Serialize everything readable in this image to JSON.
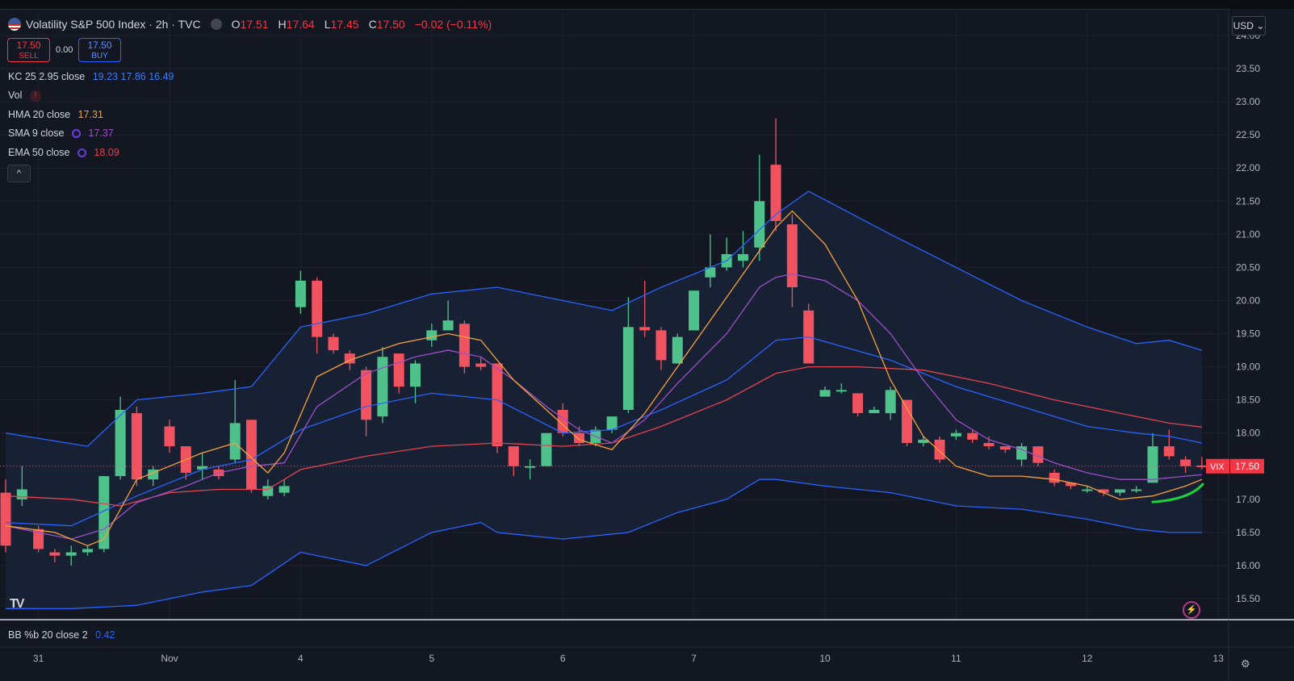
{
  "header": {
    "title": "Volatility S&P 500 Index · 2h · TVC",
    "ohlc": [
      {
        "k": "O",
        "v": "17.51"
      },
      {
        "k": "H",
        "v": "17.64"
      },
      {
        "k": "L",
        "v": "17.45"
      },
      {
        "k": "C",
        "v": "17.50"
      }
    ],
    "change": "−0.02 (−0.11%)"
  },
  "trade": {
    "sell_price": "17.50",
    "sell_label": "SELL",
    "spread": "0.00",
    "buy_price": "17.50",
    "buy_label": "BUY"
  },
  "indicators": [
    {
      "label": "KC 25 2.95 close",
      "values": "19.23  17.86  16.49",
      "color": "#2962ff"
    },
    {
      "label": "Vol",
      "values": "",
      "color": "#f23645"
    },
    {
      "label": "HMA 20 close",
      "values": "17.31",
      "color": "#f7a13a"
    },
    {
      "label": "SMA 9 close",
      "values": "17.37",
      "color": "#9c4fc8"
    },
    {
      "label": "EMA 50 close",
      "values": "18.09",
      "color": "#e2434f"
    }
  ],
  "collapse_label": "^",
  "currency_button": "USD ⌄",
  "price_label": {
    "symbol": "VIX",
    "value": "17.50"
  },
  "lower_pane": {
    "label": "BB %b 20 close 2",
    "value": "0.42"
  },
  "colors": {
    "bg": "#131722",
    "up": "#4fc28c",
    "down": "#f0525f",
    "kc": "#2962ff",
    "hma": "#f7a13a",
    "sma": "#9c4fc8",
    "ema": "#e2434f"
  },
  "chart_data": {
    "type": "candlestick",
    "y_axis": {
      "min": 15.1,
      "max": 24.2,
      "ticks": [
        "15.50",
        "16.00",
        "16.50",
        "17.00",
        "17.50",
        "18.00",
        "18.50",
        "19.00",
        "19.50",
        "20.00",
        "20.50",
        "21.00",
        "21.50",
        "22.00",
        "22.50",
        "23.00",
        "23.50",
        "24.00"
      ]
    },
    "x_ticks": [
      {
        "label": "31",
        "index": 2
      },
      {
        "label": "Nov",
        "index": 10
      },
      {
        "label": "4",
        "index": 18
      },
      {
        "label": "5",
        "index": 26
      },
      {
        "label": "6",
        "index": 34
      },
      {
        "label": "7",
        "index": 42
      },
      {
        "label": "10",
        "index": 50
      },
      {
        "label": "11",
        "index": 58
      },
      {
        "label": "12",
        "index": 66
      },
      {
        "label": "13",
        "index": 74
      }
    ],
    "candles": [
      [
        17.1,
        16.3,
        17.3,
        16.2
      ],
      [
        17.0,
        17.15,
        17.5,
        16.9
      ],
      [
        16.55,
        16.25,
        16.6,
        16.2
      ],
      [
        16.2,
        16.15,
        16.25,
        16.05
      ],
      [
        16.15,
        16.2,
        16.3,
        16.0
      ],
      [
        16.2,
        16.25,
        16.3,
        16.15
      ],
      [
        16.25,
        17.35,
        17.35,
        16.2
      ],
      [
        17.35,
        18.35,
        18.55,
        17.3
      ],
      [
        18.3,
        17.3,
        18.4,
        17.2
      ],
      [
        17.3,
        17.45,
        17.5,
        17.2
      ],
      [
        18.1,
        17.8,
        18.2,
        17.7
      ],
      [
        17.8,
        17.4,
        17.8,
        17.3
      ],
      [
        17.45,
        17.5,
        17.7,
        17.3
      ],
      [
        17.45,
        17.35,
        17.5,
        17.3
      ],
      [
        17.6,
        18.15,
        18.8,
        17.55
      ],
      [
        18.2,
        17.15,
        18.2,
        17.1
      ],
      [
        17.05,
        17.2,
        17.3,
        17.0
      ],
      [
        17.1,
        17.2,
        17.3,
        17.05
      ],
      [
        19.9,
        20.3,
        20.45,
        19.8
      ],
      [
        20.3,
        19.45,
        20.35,
        19.2
      ],
      [
        19.45,
        19.25,
        19.5,
        19.2
      ],
      [
        19.2,
        19.05,
        19.25,
        18.95
      ],
      [
        18.95,
        18.2,
        19.0,
        17.95
      ],
      [
        18.25,
        19.15,
        19.3,
        18.15
      ],
      [
        19.2,
        18.7,
        19.2,
        18.6
      ],
      [
        18.7,
        19.05,
        19.1,
        18.45
      ],
      [
        19.4,
        19.55,
        19.65,
        19.3
      ],
      [
        19.55,
        19.7,
        20.0,
        19.55
      ],
      [
        19.65,
        19.0,
        19.7,
        18.9
      ],
      [
        19.05,
        19.0,
        19.15,
        18.95
      ],
      [
        19.05,
        17.8,
        19.05,
        17.7
      ],
      [
        17.8,
        17.5,
        17.8,
        17.35
      ],
      [
        17.5,
        17.5,
        17.6,
        17.3
      ],
      [
        17.5,
        18.0,
        18.0,
        17.5
      ],
      [
        18.35,
        18.0,
        18.45,
        17.95
      ],
      [
        18.0,
        17.85,
        18.1,
        17.8
      ],
      [
        17.85,
        18.05,
        18.1,
        17.8
      ],
      [
        18.05,
        18.25,
        18.25,
        18.0
      ],
      [
        18.35,
        19.6,
        20.05,
        18.3
      ],
      [
        19.6,
        19.55,
        20.3,
        19.45
      ],
      [
        19.55,
        19.1,
        19.6,
        18.95
      ],
      [
        19.05,
        19.45,
        19.5,
        19.05
      ],
      [
        19.55,
        20.15,
        20.15,
        19.55
      ],
      [
        20.35,
        20.5,
        21.0,
        20.2
      ],
      [
        20.5,
        20.7,
        20.95,
        20.45
      ],
      [
        20.6,
        20.7,
        21.05,
        20.5
      ],
      [
        20.8,
        21.5,
        22.2,
        20.6
      ],
      [
        22.05,
        21.2,
        22.75,
        21.05
      ],
      [
        21.15,
        20.2,
        21.3,
        19.9
      ],
      [
        19.85,
        19.05,
        19.95,
        19.05
      ],
      [
        18.55,
        18.65,
        18.7,
        18.55
      ],
      [
        18.65,
        18.65,
        18.75,
        18.6
      ],
      [
        18.6,
        18.3,
        18.6,
        18.25
      ],
      [
        18.3,
        18.35,
        18.4,
        18.3
      ],
      [
        18.3,
        18.65,
        18.7,
        18.2
      ],
      [
        18.5,
        17.85,
        18.5,
        17.8
      ],
      [
        17.85,
        17.9,
        17.95,
        17.8
      ],
      [
        17.9,
        17.6,
        17.95,
        17.55
      ],
      [
        17.95,
        18.0,
        18.05,
        17.9
      ],
      [
        18.0,
        17.9,
        18.05,
        17.85
      ],
      [
        17.85,
        17.8,
        17.95,
        17.75
      ],
      [
        17.8,
        17.75,
        17.8,
        17.7
      ],
      [
        17.6,
        17.8,
        17.85,
        17.5
      ],
      [
        17.8,
        17.55,
        17.8,
        17.5
      ],
      [
        17.4,
        17.25,
        17.45,
        17.2
      ],
      [
        17.25,
        17.2,
        17.25,
        17.15
      ],
      [
        17.15,
        17.15,
        17.2,
        17.1
      ],
      [
        17.15,
        17.1,
        17.15,
        17.05
      ],
      [
        17.1,
        17.15,
        17.15,
        17.05
      ],
      [
        17.15,
        17.15,
        17.2,
        17.1
      ],
      [
        17.25,
        17.8,
        18.0,
        17.25
      ],
      [
        17.8,
        17.65,
        18.05,
        17.6
      ],
      [
        17.6,
        17.5,
        17.65,
        17.4
      ],
      [
        17.51,
        17.5,
        17.64,
        17.45
      ]
    ],
    "keltner": {
      "upper": [
        [
          0,
          18.0
        ],
        [
          5,
          17.8
        ],
        [
          8,
          18.5
        ],
        [
          12,
          18.6
        ],
        [
          15,
          18.7
        ],
        [
          18,
          19.6
        ],
        [
          22,
          19.8
        ],
        [
          26,
          20.1
        ],
        [
          30,
          20.2
        ],
        [
          34,
          20.0
        ],
        [
          37,
          19.85
        ],
        [
          40,
          20.2
        ],
        [
          44,
          20.6
        ],
        [
          47,
          21.3
        ],
        [
          49,
          21.65
        ],
        [
          54,
          21.0
        ],
        [
          58,
          20.5
        ],
        [
          62,
          20.0
        ],
        [
          66,
          19.6
        ],
        [
          69,
          19.35
        ],
        [
          71,
          19.4
        ],
        [
          73,
          19.25
        ]
      ],
      "middle": [
        [
          0,
          16.65
        ],
        [
          4,
          16.6
        ],
        [
          8,
          17.05
        ],
        [
          12,
          17.45
        ],
        [
          15,
          17.6
        ],
        [
          18,
          18.05
        ],
        [
          22,
          18.4
        ],
        [
          26,
          18.6
        ],
        [
          30,
          18.5
        ],
        [
          34,
          18.0
        ],
        [
          37,
          18.05
        ],
        [
          40,
          18.35
        ],
        [
          44,
          18.8
        ],
        [
          47,
          19.4
        ],
        [
          49,
          19.45
        ],
        [
          54,
          19.1
        ],
        [
          58,
          18.7
        ],
        [
          62,
          18.4
        ],
        [
          66,
          18.1
        ],
        [
          69,
          18.0
        ],
        [
          71,
          17.95
        ],
        [
          73,
          17.85
        ]
      ],
      "lower": [
        [
          0,
          15.35
        ],
        [
          4,
          15.35
        ],
        [
          8,
          15.4
        ],
        [
          12,
          15.6
        ],
        [
          15,
          15.7
        ],
        [
          18,
          16.2
        ],
        [
          22,
          16.0
        ],
        [
          26,
          16.5
        ],
        [
          29,
          16.65
        ],
        [
          30,
          16.5
        ],
        [
          34,
          16.4
        ],
        [
          38,
          16.5
        ],
        [
          41,
          16.8
        ],
        [
          44,
          17.0
        ],
        [
          46,
          17.3
        ],
        [
          47,
          17.3
        ],
        [
          50,
          17.2
        ],
        [
          54,
          17.1
        ],
        [
          58,
          16.9
        ],
        [
          62,
          16.85
        ],
        [
          66,
          16.7
        ],
        [
          69,
          16.55
        ],
        [
          71,
          16.5
        ],
        [
          73,
          16.5
        ]
      ]
    },
    "hma": [
      [
        0,
        16.6
      ],
      [
        3,
        16.5
      ],
      [
        5,
        16.3
      ],
      [
        6,
        16.4
      ],
      [
        8,
        17.3
      ],
      [
        10,
        17.5
      ],
      [
        12,
        17.7
      ],
      [
        14,
        17.85
      ],
      [
        16,
        17.4
      ],
      [
        17,
        17.7
      ],
      [
        19,
        18.85
      ],
      [
        21,
        19.1
      ],
      [
        24,
        19.35
      ],
      [
        27,
        19.5
      ],
      [
        29,
        19.4
      ],
      [
        31,
        18.8
      ],
      [
        33,
        18.35
      ],
      [
        35,
        17.9
      ],
      [
        37,
        17.75
      ],
      [
        39,
        18.3
      ],
      [
        41,
        19.0
      ],
      [
        43,
        19.7
      ],
      [
        45,
        20.4
      ],
      [
        47,
        21.1
      ],
      [
        48,
        21.35
      ],
      [
        50,
        20.85
      ],
      [
        52,
        20.0
      ],
      [
        54,
        18.8
      ],
      [
        56,
        17.95
      ],
      [
        58,
        17.5
      ],
      [
        60,
        17.35
      ],
      [
        62,
        17.35
      ],
      [
        64,
        17.3
      ],
      [
        66,
        17.2
      ],
      [
        68,
        17.0
      ],
      [
        70,
        17.05
      ],
      [
        72,
        17.2
      ],
      [
        73,
        17.3
      ]
    ],
    "sma": [
      [
        0,
        16.6
      ],
      [
        4,
        16.4
      ],
      [
        6,
        16.55
      ],
      [
        8,
        16.95
      ],
      [
        11,
        17.2
      ],
      [
        13,
        17.4
      ],
      [
        15,
        17.5
      ],
      [
        17,
        17.55
      ],
      [
        19,
        18.4
      ],
      [
        22,
        18.9
      ],
      [
        25,
        19.15
      ],
      [
        27,
        19.25
      ],
      [
        29,
        19.15
      ],
      [
        31,
        18.8
      ],
      [
        33,
        18.4
      ],
      [
        35,
        18.05
      ],
      [
        37,
        17.85
      ],
      [
        39,
        18.2
      ],
      [
        41,
        18.75
      ],
      [
        44,
        19.5
      ],
      [
        46,
        20.2
      ],
      [
        47,
        20.35
      ],
      [
        48,
        20.4
      ],
      [
        50,
        20.3
      ],
      [
        52,
        20.0
      ],
      [
        54,
        19.5
      ],
      [
        56,
        18.8
      ],
      [
        58,
        18.2
      ],
      [
        60,
        17.9
      ],
      [
        62,
        17.75
      ],
      [
        64,
        17.55
      ],
      [
        66,
        17.4
      ],
      [
        68,
        17.3
      ],
      [
        70,
        17.3
      ],
      [
        72,
        17.35
      ],
      [
        73,
        17.37
      ]
    ],
    "ema": [
      [
        0,
        17.05
      ],
      [
        4,
        17.0
      ],
      [
        7,
        16.9
      ],
      [
        10,
        17.1
      ],
      [
        13,
        17.15
      ],
      [
        16,
        17.15
      ],
      [
        18,
        17.45
      ],
      [
        22,
        17.65
      ],
      [
        26,
        17.8
      ],
      [
        30,
        17.85
      ],
      [
        34,
        17.8
      ],
      [
        37,
        17.85
      ],
      [
        40,
        18.1
      ],
      [
        44,
        18.5
      ],
      [
        47,
        18.9
      ],
      [
        49,
        19.0
      ],
      [
        52,
        19.0
      ],
      [
        56,
        18.95
      ],
      [
        60,
        18.75
      ],
      [
        64,
        18.5
      ],
      [
        68,
        18.3
      ],
      [
        71,
        18.15
      ],
      [
        73,
        18.09
      ]
    ]
  }
}
